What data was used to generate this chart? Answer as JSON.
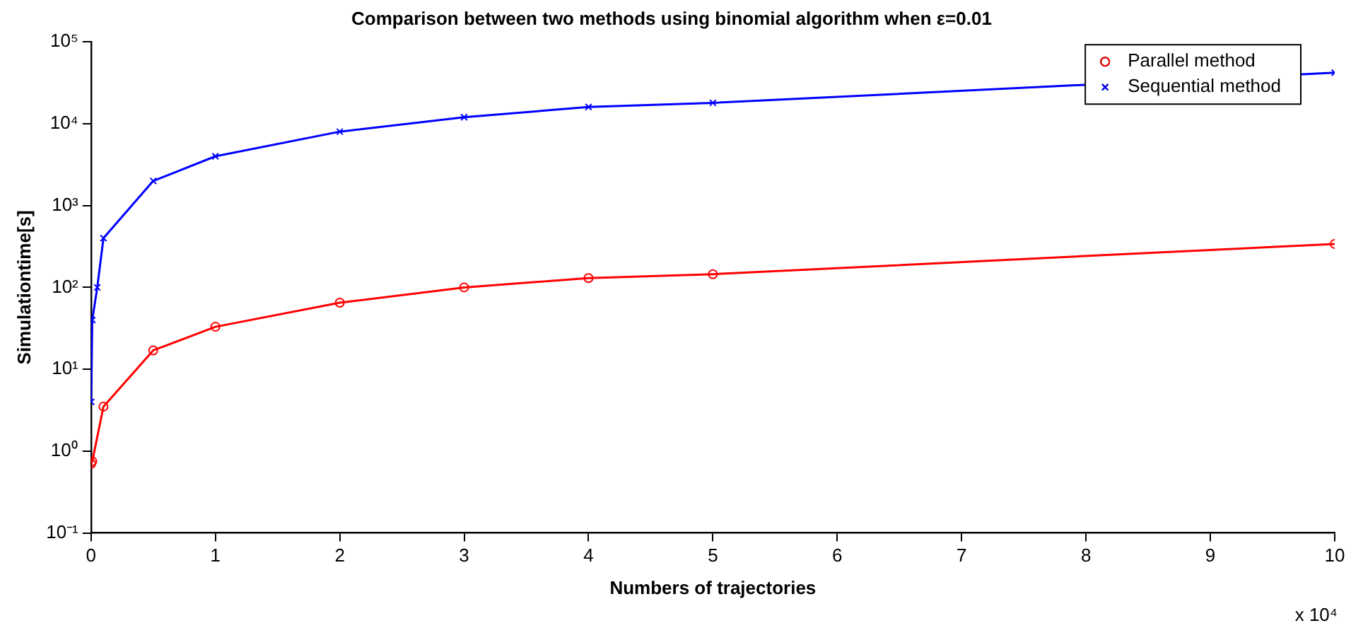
{
  "chart_data": {
    "type": "line",
    "title": "Comparison between two methods using binomial algorithm when ε=0.01",
    "xlabel": "Numbers of trajectories",
    "ylabel": "Simulationtime[s]",
    "annotations": [
      "x 10⁴"
    ],
    "log": "y",
    "grid": false,
    "legend": "top right",
    "xlim": [
      0,
      10
    ],
    "xticks": [
      0,
      1,
      2,
      3,
      4,
      5,
      6,
      7,
      8,
      9,
      10
    ],
    "ylim": [
      0.1,
      100000
    ],
    "yticks": [
      {
        "value": 0.1,
        "label": "10⁻¹"
      },
      {
        "value": 1,
        "label": "10⁰"
      },
      {
        "value": 10,
        "label": "10¹"
      },
      {
        "value": 100,
        "label": "10²"
      },
      {
        "value": 1000,
        "label": "10³"
      },
      {
        "value": 10000,
        "label": "10⁴"
      },
      {
        "value": 100000,
        "label": "10⁵"
      }
    ],
    "series": [
      {
        "name": "Parallel method",
        "color": "#ff0000",
        "marker": "circle",
        "x": [
          0.001,
          0.01,
          0.1,
          0.5,
          1,
          2,
          3,
          4,
          5,
          10
        ],
        "values": [
          0.7,
          0.75,
          3.5,
          17,
          33,
          65,
          100,
          130,
          145,
          340
        ]
      },
      {
        "name": "Sequential method",
        "color": "#0000ff",
        "marker": "cross",
        "x": [
          0.001,
          0.01,
          0.05,
          0.1,
          0.5,
          1,
          2,
          3,
          4,
          5,
          10
        ],
        "values": [
          4,
          40,
          100,
          400,
          2000,
          4000,
          8000,
          12000,
          16000,
          18000,
          42000
        ]
      }
    ]
  }
}
